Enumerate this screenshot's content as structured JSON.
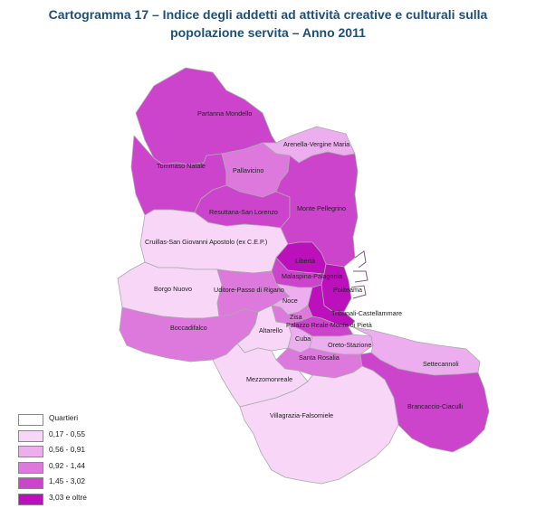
{
  "title_line1": "Cartogramma 17 – Indice degli addetti ad attività creative e culturali sulla",
  "title_line2": "popolazione servita – Anno 2011",
  "colors": {
    "none": "#ffffff",
    "c1": "#f7d6f7",
    "c2": "#ecaeee",
    "c3": "#dd78dd",
    "c4": "#cc44cc",
    "c5": "#bb10bb"
  },
  "legend": [
    {
      "label": "Quartieri",
      "class": "none"
    },
    {
      "label": "0,17 - 0,55",
      "class": "c1"
    },
    {
      "label": "0,56 - 0,91",
      "class": "c2"
    },
    {
      "label": "0,92 - 1,44",
      "class": "c3"
    },
    {
      "label": "1,45 - 3,02",
      "class": "c4"
    },
    {
      "label": "3,03 e oltre",
      "class": "c5"
    }
  ],
  "districts": [
    {
      "name": "Partanna Mondello",
      "class": "c4"
    },
    {
      "name": "Arenella-Vergine Maria",
      "class": "c2"
    },
    {
      "name": "Tommaso Natale",
      "class": "c4"
    },
    {
      "name": "Pallavicino",
      "class": "c3"
    },
    {
      "name": "Resuttana-San Lorenzo",
      "class": "c4"
    },
    {
      "name": "Monte Pellegrino",
      "class": "c4"
    },
    {
      "name": "Cruillas-San Giovanni Apostolo (ex C.E.P.)",
      "class": "c1"
    },
    {
      "name": "Libertà",
      "class": "c5"
    },
    {
      "name": "Malaspina-Palagonia",
      "class": "c4"
    },
    {
      "name": "Politeama",
      "class": "c5"
    },
    {
      "name": "Borgo Nuovo",
      "class": "c1"
    },
    {
      "name": "Uditore-Passo di Rigano",
      "class": "c3"
    },
    {
      "name": "Noce",
      "class": "c2"
    },
    {
      "name": "Tribunali-Castellammare",
      "class": "c5"
    },
    {
      "name": "Zisa",
      "class": "c3"
    },
    {
      "name": "Palazzo Reale-Monte di Pietà",
      "class": "c4"
    },
    {
      "name": "Boccadifalco",
      "class": "c3"
    },
    {
      "name": "Altarello",
      "class": "c1"
    },
    {
      "name": "Cuba",
      "class": "c2"
    },
    {
      "name": "Oreto-Stazione",
      "class": "c2"
    },
    {
      "name": "Santa Rosalia",
      "class": "c3"
    },
    {
      "name": "Settecannoli",
      "class": "c2"
    },
    {
      "name": "Mezzomonreale",
      "class": "c1"
    },
    {
      "name": "Brancaccio-Ciaculli",
      "class": "c4"
    },
    {
      "name": "Villagrazia-Falsomiele",
      "class": "c1"
    }
  ]
}
